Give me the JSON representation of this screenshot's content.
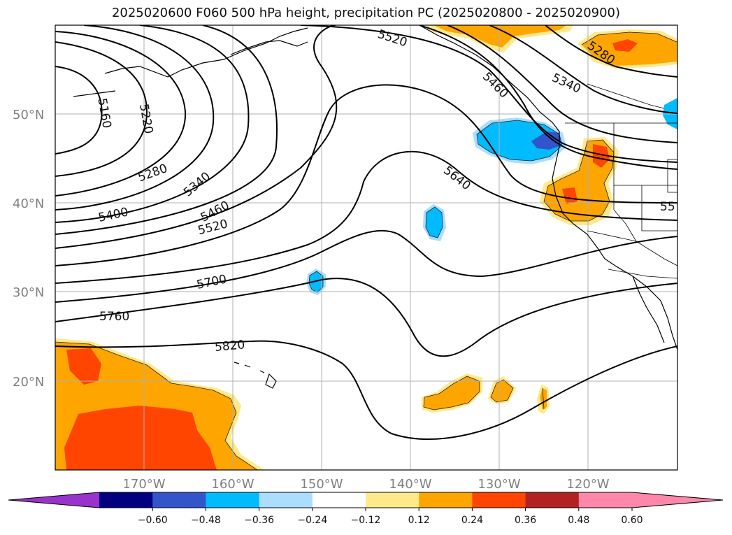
{
  "title": "2025020600 F060 500 hPa height, precipitation PC (2025020800 - 2025020900)",
  "lat_labels": [
    "50°N",
    "40°N",
    "30°N",
    "20°N"
  ],
  "lon_labels": [
    "170°W",
    "160°W",
    "150°W",
    "140°W",
    "130°W",
    "120°W"
  ],
  "contour_labels": [
    "5160",
    "5220",
    "5280",
    "5340",
    "5400",
    "5460",
    "5520",
    "5520",
    "5460",
    "5340",
    "5280",
    "5640",
    "5700",
    "5760",
    "5820",
    "55"
  ],
  "colorbar": {
    "tick_labels": [
      "−0.60",
      "−0.48",
      "−0.36",
      "−0.24",
      "−0.12",
      "0.12",
      "0.24",
      "0.36",
      "0.48",
      "0.60"
    ],
    "colors": [
      "#9933cc",
      "#000080",
      "#3355cc",
      "#00bbff",
      "#aaddff",
      "#ffffff",
      "#ffe98a",
      "#ffa500",
      "#ff4500",
      "#b22222",
      "#ff88aa",
      "#ff88aa"
    ]
  }
}
